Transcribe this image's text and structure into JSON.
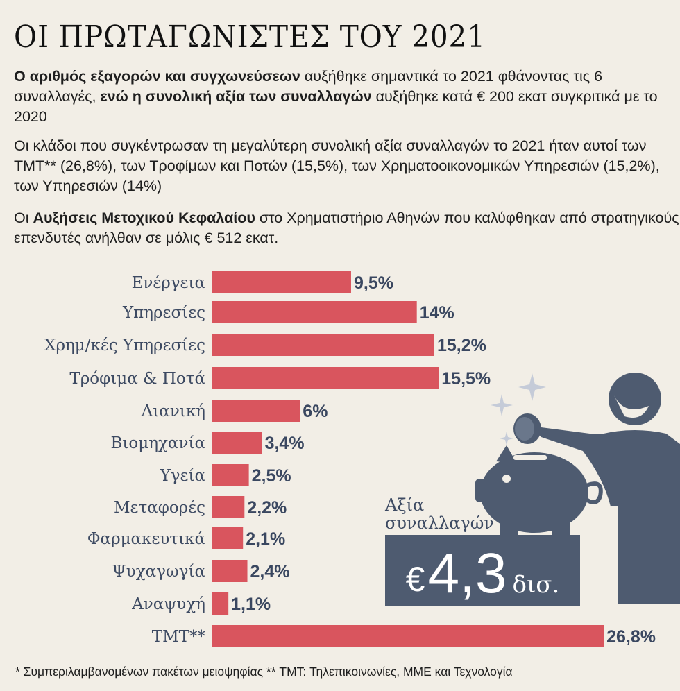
{
  "title": "ΟΙ ΠΡΩΤΑΓΩΝΙΣΤΕΣ ΤΟΥ 2021",
  "paragraphs": {
    "p1": {
      "b1": "Ο αριθμός εξαγορών και συγχωνεύσεων",
      "t1": " αυξήθηκε σημαντικά το 2021 φθάνοντας τις 6 συναλλαγές, ",
      "b2": "ενώ η συνολική αξία των συναλλαγών",
      "t2": " αυξήθηκε κατά €  200 εκατ συγκριτικά με το 2020"
    },
    "p2": {
      "t1": "Οι κλάδοι που συγκέντρωσαν τη μεγαλύτερη συνολική αξία συναλλαγών το 2021 ήταν αυτοί των TMT** (26,8%), των Τροφίμων και Ποτών (15,5%), των Χρηματοοικονομικών Υπηρεσιών (15,2%), των Υπηρεσιών (14%)"
    },
    "p3": {
      "t0": "Οι ",
      "b1": "Αυξήσεις Μετοχικού Κεφαλαίου",
      "t1": " στο Χρηματιστήριο Αθηνών που καλύφθηκαν από στρατηγικούς επενδυτές ανήλθαν σε μόλις € 512 εκατ."
    }
  },
  "chart_data": {
    "type": "bar",
    "orientation": "horizontal",
    "unit": "%",
    "categories": [
      "Ενέργεια",
      "Υπηρεσίες",
      "Χρημ/κές Υπηρεσίες",
      "Τρόφιμα & Ποτά",
      "Λιανική",
      "Βιομηχανία",
      "Υγεία",
      "Μεταφορές",
      "Φαρμακευτικά",
      "Ψυχαγωγία",
      "Αναψυχή",
      "TMT**"
    ],
    "values": [
      9.5,
      14,
      15.2,
      15.5,
      6,
      3.4,
      2.5,
      2.2,
      2.1,
      2.4,
      1.1,
      26.8
    ],
    "labels": [
      "9,5",
      "14",
      "15,2",
      "15,5",
      "6",
      "3,4",
      "2,5",
      "2,2",
      "2,1",
      "2,4",
      "1,1",
      "26,8"
    ],
    "bar_color": "#d9555e",
    "label_color": "#3d4a62"
  },
  "highlight": {
    "caption_line1": "Αξία",
    "caption_line2": "συναλλαγών",
    "currency": "€",
    "value": "4,3",
    "unit": "δισ.",
    "box_color": "#4e5b70"
  },
  "illustration": {
    "icons": [
      "person-icon",
      "coin-icon",
      "piggy-bank-icon",
      "sparkle-icon"
    ],
    "color": "#4e5b70",
    "sparkle_color": "#c5cbd8"
  },
  "footnote": "* Συμπεριλαμβανομένων πακέτων μειοψηφίας ** TMT: Τηλεπικοινωνίες, ΜΜΕ και Τεχνολογία"
}
